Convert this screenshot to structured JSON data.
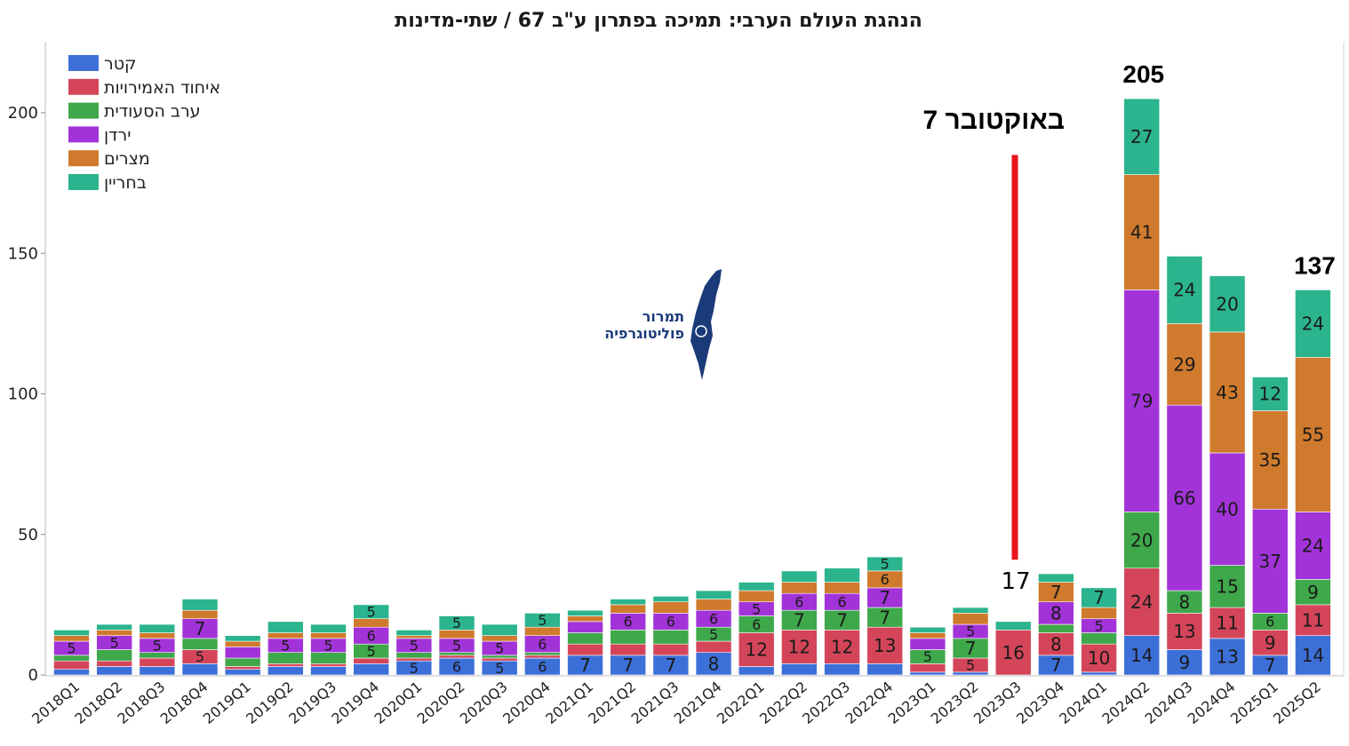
{
  "chart_data": {
    "type": "bar",
    "stacked": true,
    "title": "הנהגת העולם הערבי: תמיכה בפתרון ע\"ב 67 / שתי-מדינות",
    "ylim": [
      0,
      225
    ],
    "yticks": [
      0,
      50,
      100,
      150,
      200
    ],
    "legend_placement": "top-left",
    "grid": false,
    "categories": [
      "2018Q1",
      "2018Q2",
      "2018Q3",
      "2018Q4",
      "2019Q1",
      "2019Q2",
      "2019Q3",
      "2019Q4",
      "2020Q1",
      "2020Q2",
      "2020Q3",
      "2020Q4",
      "2021Q1",
      "2021Q2",
      "2021Q3",
      "2021Q4",
      "2022Q1",
      "2022Q2",
      "2022Q3",
      "2022Q4",
      "2023Q1",
      "2023Q2",
      "2023Q3",
      "2023Q4",
      "2024Q1",
      "2024Q2",
      "2024Q3",
      "2024Q4",
      "2025Q1",
      "2025Q2"
    ],
    "series": [
      {
        "name": "קטר",
        "color": "#3d6fd9",
        "values": [
          2,
          3,
          3,
          4,
          2,
          3,
          3,
          4,
          5,
          6,
          5,
          6,
          7,
          7,
          7,
          8,
          3,
          4,
          4,
          4,
          1,
          1,
          0,
          7,
          1,
          14,
          9,
          13,
          7,
          14
        ]
      },
      {
        "name": "איחוד האמירויות",
        "color": "#d4455a",
        "values": [
          3,
          2,
          3,
          5,
          1,
          1,
          1,
          2,
          1,
          1,
          1,
          1,
          4,
          4,
          4,
          4,
          12,
          12,
          12,
          13,
          3,
          5,
          16,
          8,
          10,
          24,
          13,
          11,
          9,
          11
        ]
      },
      {
        "name": "ערב הסעודית",
        "color": "#3ea84a",
        "values": [
          2,
          4,
          2,
          4,
          3,
          4,
          4,
          5,
          2,
          1,
          1,
          1,
          4,
          5,
          5,
          5,
          6,
          7,
          7,
          7,
          5,
          7,
          0,
          3,
          4,
          20,
          8,
          15,
          6,
          9
        ]
      },
      {
        "name": "ירדן",
        "color": "#a233d8",
        "values": [
          5,
          5,
          5,
          7,
          4,
          5,
          5,
          6,
          5,
          5,
          5,
          6,
          4,
          6,
          6,
          6,
          5,
          6,
          6,
          7,
          4,
          5,
          0,
          8,
          5,
          79,
          66,
          40,
          37,
          24
        ]
      },
      {
        "name": "מצרים",
        "color": "#cf7a2c",
        "values": [
          2,
          2,
          2,
          3,
          2,
          2,
          2,
          3,
          1,
          3,
          2,
          3,
          2,
          3,
          4,
          4,
          4,
          4,
          4,
          6,
          2,
          4,
          0,
          7,
          4,
          41,
          29,
          43,
          35,
          55
        ]
      },
      {
        "name": "בחריין",
        "color": "#2bb48d",
        "values": [
          2,
          2,
          3,
          4,
          2,
          4,
          3,
          5,
          2,
          5,
          4,
          5,
          2,
          2,
          2,
          3,
          3,
          4,
          5,
          5,
          2,
          2,
          3,
          3,
          7,
          27,
          24,
          20,
          12,
          24
        ]
      }
    ],
    "value_labels_shown": [
      [
        0,
        3,
        "5"
      ],
      [
        1,
        3,
        "5"
      ],
      [
        2,
        3,
        "5"
      ],
      [
        3,
        1,
        "5"
      ],
      [
        3,
        3,
        "7"
      ],
      [
        5,
        3,
        "5"
      ],
      [
        6,
        3,
        "5"
      ],
      [
        7,
        2,
        "5"
      ],
      [
        7,
        3,
        "6"
      ],
      [
        7,
        5,
        "5"
      ],
      [
        8,
        0,
        "5"
      ],
      [
        8,
        3,
        "5"
      ],
      [
        9,
        0,
        "6"
      ],
      [
        9,
        3,
        "5"
      ],
      [
        9,
        5,
        "5"
      ],
      [
        10,
        0,
        "5"
      ],
      [
        10,
        3,
        "5"
      ],
      [
        11,
        0,
        "6"
      ],
      [
        11,
        3,
        "6"
      ],
      [
        11,
        5,
        "5"
      ],
      [
        12,
        0,
        "7"
      ],
      [
        13,
        0,
        "7"
      ],
      [
        13,
        3,
        "6"
      ],
      [
        14,
        0,
        "7"
      ],
      [
        14,
        3,
        "6"
      ],
      [
        15,
        0,
        "8"
      ],
      [
        15,
        2,
        "5"
      ],
      [
        15,
        3,
        "6"
      ],
      [
        16,
        1,
        "12"
      ],
      [
        16,
        2,
        "6"
      ],
      [
        16,
        3,
        "5"
      ],
      [
        17,
        1,
        "12"
      ],
      [
        17,
        2,
        "7"
      ],
      [
        17,
        3,
        "6"
      ],
      [
        18,
        1,
        "12"
      ],
      [
        18,
        2,
        "7"
      ],
      [
        18,
        3,
        "6"
      ],
      [
        19,
        1,
        "13"
      ],
      [
        19,
        2,
        "7"
      ],
      [
        19,
        3,
        "7"
      ],
      [
        19,
        4,
        "6"
      ],
      [
        19,
        5,
        "5"
      ],
      [
        20,
        2,
        "5"
      ],
      [
        21,
        1,
        "5"
      ],
      [
        21,
        2,
        "7"
      ],
      [
        21,
        3,
        "5"
      ],
      [
        22,
        1,
        "16"
      ],
      [
        23,
        0,
        "7"
      ],
      [
        23,
        1,
        "8"
      ],
      [
        23,
        3,
        "8"
      ],
      [
        23,
        4,
        "7"
      ],
      [
        24,
        1,
        "10"
      ],
      [
        24,
        3,
        "5"
      ],
      [
        24,
        5,
        "7"
      ],
      [
        25,
        0,
        "14"
      ],
      [
        25,
        1,
        "24"
      ],
      [
        25,
        2,
        "20"
      ],
      [
        25,
        3,
        "79"
      ],
      [
        25,
        4,
        "41"
      ],
      [
        25,
        5,
        "27"
      ],
      [
        26,
        0,
        "9"
      ],
      [
        26,
        1,
        "13"
      ],
      [
        26,
        2,
        "8"
      ],
      [
        26,
        3,
        "66"
      ],
      [
        26,
        4,
        "29"
      ],
      [
        26,
        5,
        "24"
      ],
      [
        27,
        0,
        "13"
      ],
      [
        27,
        1,
        "11"
      ],
      [
        27,
        2,
        "15"
      ],
      [
        27,
        3,
        "40"
      ],
      [
        27,
        4,
        "43"
      ],
      [
        27,
        5,
        "20"
      ],
      [
        28,
        0,
        "7"
      ],
      [
        28,
        1,
        "9"
      ],
      [
        28,
        2,
        "6"
      ],
      [
        28,
        3,
        "37"
      ],
      [
        28,
        4,
        "35"
      ],
      [
        28,
        5,
        "12"
      ],
      [
        29,
        0,
        "14"
      ],
      [
        29,
        1,
        "11"
      ],
      [
        29,
        2,
        "9"
      ],
      [
        29,
        3,
        "24"
      ],
      [
        29,
        4,
        "55"
      ],
      [
        29,
        5,
        "24"
      ]
    ],
    "totals_shown": [
      {
        "index": 25,
        "label": "205"
      },
      {
        "index": 29,
        "label": "137"
      }
    ],
    "event_marker": {
      "label": "7 באוקטובר",
      "value_top": 185,
      "value_bottom": 41,
      "color": "#e8141c",
      "between": [
        "2023Q3",
        "2023Q4"
      ]
    },
    "annotations": [
      {
        "text": "17",
        "near": "2023Q3"
      }
    ],
    "watermark": {
      "text_line1": "תמרור",
      "text_line2": "פוליטוגרפיה",
      "color": "#1b3a78"
    }
  }
}
